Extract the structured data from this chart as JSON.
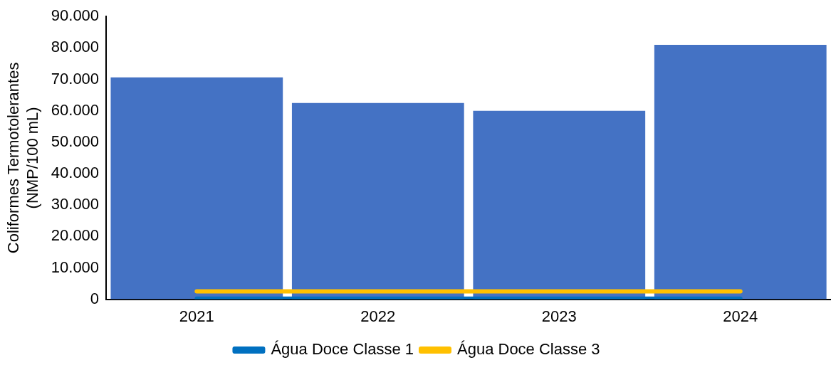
{
  "chart_data": {
    "type": "bar",
    "ylabel": "Coliformes Termotolerantes\n(NMP/100 mL)",
    "categories": [
      "2021",
      "2022",
      "2023",
      "2024"
    ],
    "series": [
      {
        "color": "#4472c4",
        "values": [
          70600,
          62500,
          60000,
          81000
        ]
      },
      {
        "type": "line",
        "name": "Água Doce Classe 1",
        "color": "#0070c0",
        "values": [
          200,
          200,
          200,
          200
        ]
      },
      {
        "type": "line",
        "name": "Água Doce Classe 3",
        "color": "#ffc000",
        "values": [
          2500,
          2500,
          2500,
          2500
        ]
      }
    ],
    "ylim": [
      0,
      90000
    ],
    "yticks": [
      0,
      {
        "value": 10000,
        "label": "10.000"
      },
      {
        "value": 20000,
        "label": "20.000"
      },
      {
        "value": 30000,
        "label": "30.000"
      },
      {
        "value": 40000,
        "label": "40.000"
      },
      {
        "value": 50000,
        "label": "50.000"
      },
      {
        "value": 60000,
        "label": "60.000"
      },
      {
        "value": 70000,
        "label": "70.000"
      },
      {
        "value": 80000,
        "label": "80.000"
      },
      {
        "value": 90000,
        "label": "90.000"
      }
    ],
    "grid": false,
    "legend": "bottom",
    "marker": "none",
    "line_style": "solid"
  }
}
